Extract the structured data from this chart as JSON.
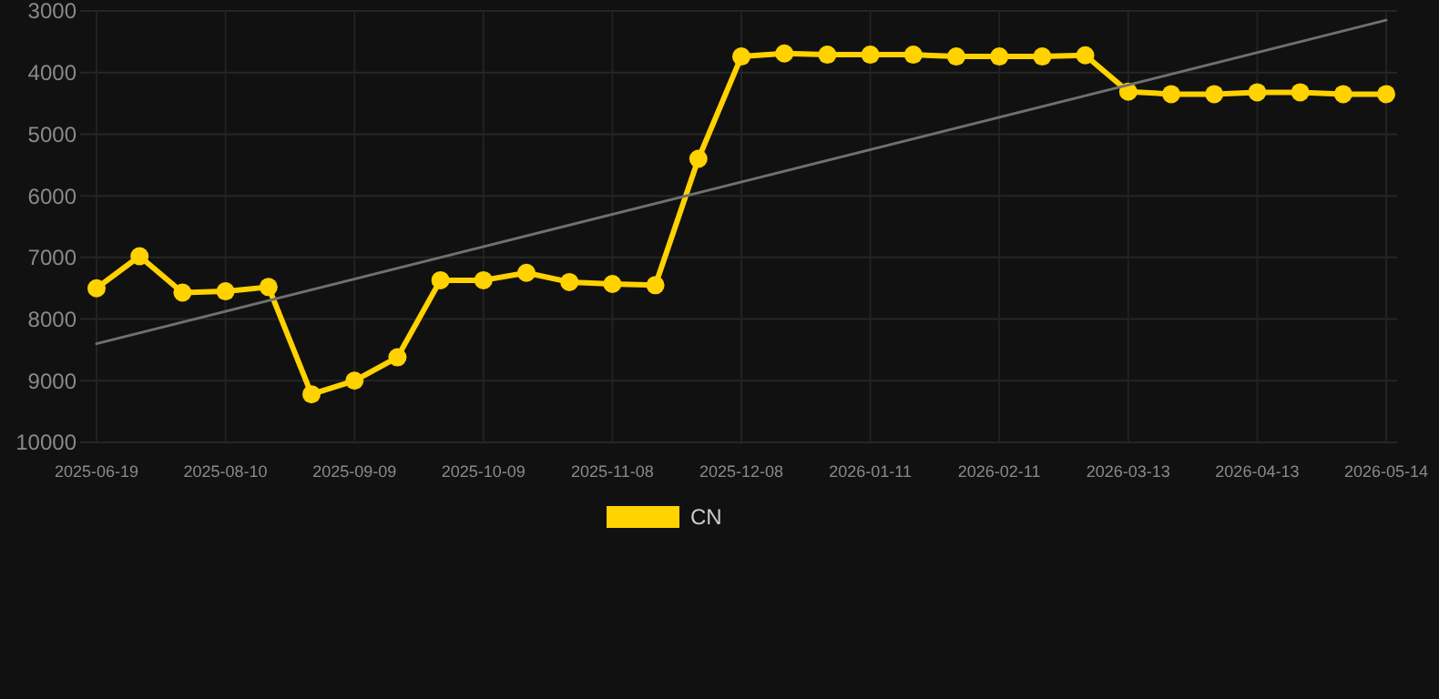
{
  "chart_data": {
    "type": "line",
    "categories": [
      "2025-06-19",
      null,
      null,
      "2025-08-10",
      null,
      null,
      "2025-09-09",
      null,
      null,
      "2025-10-09",
      null,
      null,
      "2025-11-08",
      null,
      null,
      "2025-12-08",
      null,
      null,
      "2026-01-11",
      null,
      null,
      "2026-02-11",
      null,
      null,
      "2026-03-13",
      null,
      null,
      "2026-04-13",
      null,
      null,
      "2026-05-14"
    ],
    "ylim": [
      10000,
      3000
    ],
    "yticks": [
      3000,
      4000,
      5000,
      6000,
      7000,
      8000,
      9000,
      10000
    ],
    "grid": true,
    "legend": "bottom",
    "marker": "circle",
    "series": [
      {
        "name": "CN",
        "color": "#ffd200",
        "values": [
          7500,
          6980,
          7570,
          7550,
          7480,
          9220,
          9000,
          8620,
          7370,
          7370,
          7250,
          7400,
          7430,
          7450,
          5400,
          3740,
          3690,
          3710,
          3710,
          3710,
          3740,
          3740,
          3740,
          3720,
          4310,
          4350,
          4350,
          4320,
          4320,
          4350,
          4350
        ]
      },
      {
        "type": "line",
        "color": "#707070",
        "marker": "none",
        "values": [
          8400,
          null,
          null,
          null,
          null,
          null,
          null,
          null,
          null,
          null,
          null,
          null,
          null,
          null,
          null,
          null,
          null,
          null,
          null,
          null,
          null,
          null,
          null,
          null,
          null,
          null,
          null,
          null,
          null,
          null,
          3150
        ]
      }
    ]
  }
}
